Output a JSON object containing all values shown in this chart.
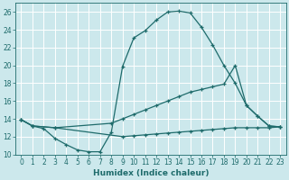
{
  "xlabel": "Humidex (Indice chaleur)",
  "bg_color": "#cce8ec",
  "grid_color": "#ffffff",
  "line_color": "#1e6b6b",
  "xlim": [
    -0.5,
    23.5
  ],
  "ylim": [
    10,
    27
  ],
  "xticks": [
    0,
    1,
    2,
    3,
    4,
    5,
    6,
    7,
    8,
    9,
    10,
    11,
    12,
    13,
    14,
    15,
    16,
    17,
    18,
    19,
    20,
    21,
    22,
    23
  ],
  "yticks": [
    10,
    12,
    14,
    16,
    18,
    20,
    22,
    24,
    26
  ],
  "line1_x": [
    0,
    1,
    2,
    3,
    4,
    5,
    6,
    7,
    8,
    9,
    10,
    11,
    12,
    13,
    14,
    15,
    16,
    17,
    18,
    19,
    20,
    21,
    22,
    23
  ],
  "line1_y": [
    13.9,
    13.2,
    12.9,
    11.8,
    11.1,
    10.5,
    10.3,
    10.3,
    12.5,
    19.9,
    23.1,
    23.9,
    25.1,
    26.0,
    26.1,
    25.9,
    24.3,
    22.3,
    20.0,
    18.0,
    15.5,
    14.3,
    13.2,
    13.1
  ],
  "line2_x": [
    0,
    1,
    3,
    8,
    9,
    10,
    11,
    12,
    13,
    14,
    15,
    16,
    17,
    18,
    19,
    20,
    21,
    22,
    23
  ],
  "line2_y": [
    13.9,
    13.2,
    13.0,
    13.5,
    14.0,
    14.5,
    15.0,
    15.5,
    16.0,
    16.5,
    17.0,
    17.3,
    17.6,
    17.9,
    20.0,
    15.5,
    14.3,
    13.2,
    13.1
  ],
  "line3_x": [
    0,
    1,
    3,
    9,
    10,
    11,
    12,
    13,
    14,
    15,
    16,
    17,
    18,
    19,
    20,
    21,
    22,
    23
  ],
  "line3_y": [
    13.9,
    13.2,
    13.0,
    12.0,
    12.1,
    12.2,
    12.3,
    12.4,
    12.5,
    12.6,
    12.7,
    12.8,
    12.9,
    13.0,
    13.0,
    13.0,
    13.0,
    13.1
  ],
  "tick_fontsize": 5.5,
  "xlabel_fontsize": 6.5
}
